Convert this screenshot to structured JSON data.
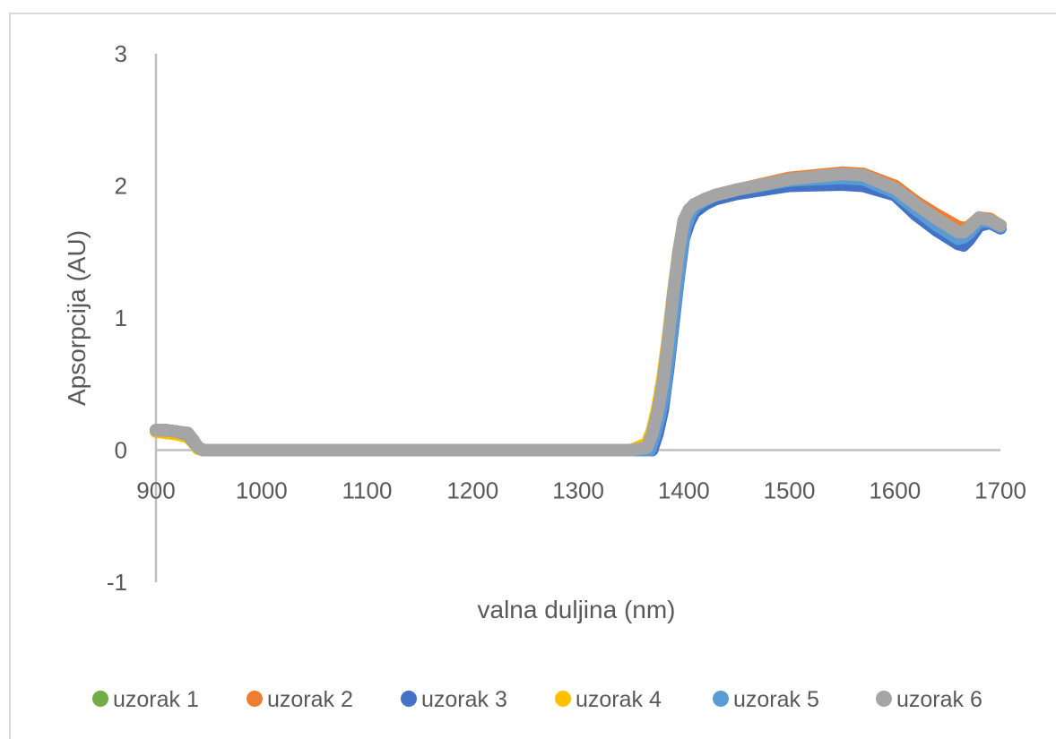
{
  "chart_data": {
    "type": "scatter",
    "title": "",
    "xlabel": "valna duljina (nm)",
    "ylabel": "Apsorpcija (AU)",
    "xlim": [
      900,
      1700
    ],
    "ylim": [
      -1,
      3
    ],
    "xticks": [
      900,
      1000,
      1100,
      1200,
      1300,
      1400,
      1500,
      1600,
      1700
    ],
    "yticks": [
      -1,
      0,
      1,
      2,
      3
    ],
    "grid": false,
    "legend_position": "bottom",
    "series": [
      {
        "name": "uzorak 1",
        "color": "#70ad47",
        "x": [
          900,
          910,
          920,
          930,
          935,
          940,
          945,
          950,
          1000,
          1100,
          1200,
          1300,
          1350,
          1365,
          1370,
          1375,
          1380,
          1385,
          1390,
          1395,
          1400,
          1405,
          1410,
          1420,
          1430,
          1450,
          1500,
          1550,
          1570,
          1600,
          1620,
          1640,
          1660,
          1665,
          1670,
          1680,
          1690,
          1700
        ],
        "y": [
          0.15,
          0.15,
          0.14,
          0.12,
          0.07,
          0.02,
          0,
          0,
          0,
          0,
          0,
          0,
          0,
          0,
          0.1,
          0.25,
          0.45,
          0.75,
          1.1,
          1.45,
          1.72,
          1.8,
          1.85,
          1.9,
          1.93,
          1.97,
          2.05,
          2.08,
          2.07,
          1.97,
          1.84,
          1.74,
          1.64,
          1.65,
          1.67,
          1.75,
          1.74,
          1.7
        ]
      },
      {
        "name": "uzorak 2",
        "color": "#ed7d31",
        "x": [
          900,
          910,
          920,
          930,
          935,
          940,
          945,
          950,
          1000,
          1100,
          1200,
          1300,
          1350,
          1365,
          1370,
          1375,
          1380,
          1385,
          1390,
          1395,
          1400,
          1405,
          1410,
          1420,
          1430,
          1450,
          1500,
          1550,
          1570,
          1600,
          1620,
          1640,
          1660,
          1665,
          1670,
          1680,
          1690,
          1700
        ],
        "y": [
          0.15,
          0.15,
          0.14,
          0.12,
          0.07,
          0.02,
          0,
          0,
          0,
          0,
          0,
          0,
          0,
          0,
          0.1,
          0.25,
          0.45,
          0.75,
          1.1,
          1.45,
          1.72,
          1.8,
          1.85,
          1.9,
          1.93,
          1.97,
          2.06,
          2.1,
          2.09,
          2.0,
          1.88,
          1.78,
          1.69,
          1.68,
          1.69,
          1.76,
          1.75,
          1.7
        ]
      },
      {
        "name": "uzorak 3",
        "color": "#4472c4",
        "x": [
          900,
          910,
          920,
          930,
          935,
          940,
          945,
          950,
          1000,
          1100,
          1200,
          1300,
          1350,
          1370,
          1375,
          1380,
          1385,
          1390,
          1395,
          1400,
          1405,
          1410,
          1420,
          1430,
          1450,
          1500,
          1550,
          1570,
          1600,
          1620,
          1640,
          1660,
          1665,
          1670,
          1680,
          1690,
          1700
        ],
        "y": [
          0.15,
          0.15,
          0.14,
          0.12,
          0.07,
          0.02,
          0,
          0,
          0,
          0,
          0,
          0,
          0,
          0,
          0.12,
          0.3,
          0.6,
          0.95,
          1.3,
          1.6,
          1.72,
          1.8,
          1.86,
          1.9,
          1.94,
          2.0,
          2.01,
          2.0,
          1.93,
          1.78,
          1.66,
          1.56,
          1.55,
          1.59,
          1.7,
          1.72,
          1.68
        ]
      },
      {
        "name": "uzorak 4",
        "color": "#ffc000",
        "x": [
          900,
          910,
          920,
          930,
          935,
          940,
          945,
          950,
          1000,
          1100,
          1200,
          1300,
          1350,
          1365,
          1370,
          1375,
          1380,
          1385,
          1390,
          1395,
          1400,
          1405,
          1410,
          1420,
          1430,
          1450,
          1500,
          1550,
          1570,
          1600,
          1620,
          1640,
          1660,
          1665,
          1670,
          1680,
          1690,
          1700
        ],
        "y": [
          0.14,
          0.13,
          0.12,
          0.1,
          0.06,
          0.01,
          0,
          0,
          0,
          0,
          0,
          0,
          0,
          0.05,
          0.15,
          0.32,
          0.55,
          0.85,
          1.2,
          1.5,
          1.74,
          1.82,
          1.86,
          1.9,
          1.93,
          1.97,
          2.05,
          2.09,
          2.08,
          1.98,
          1.85,
          1.75,
          1.65,
          1.65,
          1.68,
          1.75,
          1.74,
          1.7
        ]
      },
      {
        "name": "uzorak 5",
        "color": "#5b9bd5",
        "x": [
          900,
          910,
          920,
          930,
          935,
          940,
          945,
          950,
          1000,
          1100,
          1200,
          1300,
          1350,
          1368,
          1372,
          1377,
          1382,
          1387,
          1392,
          1397,
          1402,
          1407,
          1412,
          1420,
          1430,
          1450,
          1500,
          1550,
          1570,
          1600,
          1620,
          1640,
          1660,
          1665,
          1670,
          1680,
          1690,
          1700
        ],
        "y": [
          0.15,
          0.15,
          0.14,
          0.12,
          0.07,
          0.02,
          0,
          0,
          0,
          0,
          0,
          0,
          0,
          0,
          0.1,
          0.25,
          0.45,
          0.78,
          1.12,
          1.45,
          1.7,
          1.8,
          1.85,
          1.89,
          1.93,
          1.97,
          2.04,
          2.06,
          2.05,
          1.95,
          1.82,
          1.7,
          1.6,
          1.61,
          1.64,
          1.73,
          1.73,
          1.69
        ]
      },
      {
        "name": "uzorak 6",
        "color": "#a5a5a5",
        "x": [
          900,
          910,
          920,
          930,
          935,
          940,
          945,
          950,
          1000,
          1100,
          1200,
          1300,
          1350,
          1365,
          1370,
          1375,
          1380,
          1385,
          1390,
          1395,
          1400,
          1405,
          1410,
          1420,
          1430,
          1450,
          1500,
          1550,
          1570,
          1600,
          1620,
          1640,
          1660,
          1665,
          1670,
          1680,
          1690,
          1700
        ],
        "y": [
          0.15,
          0.15,
          0.14,
          0.13,
          0.08,
          0.02,
          0,
          0,
          0,
          0,
          0,
          0,
          0,
          0.02,
          0.12,
          0.28,
          0.5,
          0.82,
          1.18,
          1.5,
          1.74,
          1.82,
          1.86,
          1.9,
          1.93,
          1.97,
          2.05,
          2.09,
          2.08,
          1.98,
          1.86,
          1.75,
          1.65,
          1.65,
          1.68,
          1.76,
          1.74,
          1.7
        ]
      }
    ]
  }
}
